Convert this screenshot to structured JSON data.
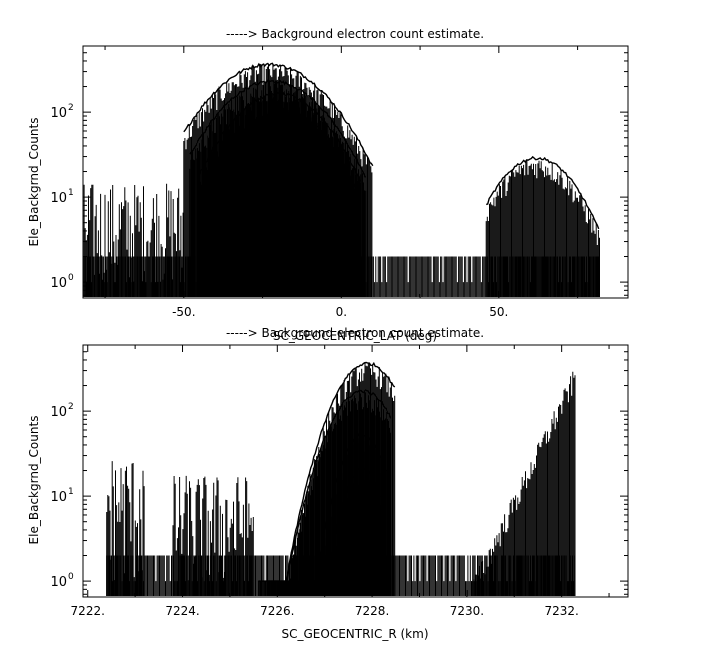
{
  "chart_data": [
    {
      "type": "line",
      "title": "-----> Background electron count estimate.",
      "xlabel": "SC_GEOCENTRIC_LAT (deg)",
      "ylabel": "Ele_Backgrnd_Counts",
      "xlim": [
        -82,
        91
      ],
      "ylim": [
        0.65,
        600
      ],
      "yscale": "log",
      "x_ticks": [
        -50,
        0,
        50
      ],
      "x_tick_labels": [
        "-50.",
        "0.",
        "50."
      ],
      "y_ticks": [
        1,
        10,
        100
      ],
      "y_tick_labels": [
        "10",
        "10",
        "10"
      ],
      "y_tick_exponents": [
        "0",
        "1",
        "2"
      ],
      "line_color": "#000000",
      "noise_floor": {
        "x_range": [
          -82,
          82
        ],
        "values": [
          1,
          2
        ]
      },
      "series": [
        {
          "x_range": [
            -82,
            -50
          ],
          "y_max": 15
        },
        {
          "x_range": [
            -50,
            10
          ],
          "peak_x": -23,
          "peak_y": 380,
          "width": 14
        },
        {
          "x_range": [
            -48,
            8
          ],
          "peak_x": -22,
          "peak_y": 240,
          "width": 13
        },
        {
          "x_range": [
            -45,
            6
          ],
          "peak_x": -20,
          "peak_y": 170,
          "width": 12
        },
        {
          "x_range": [
            -42,
            5
          ],
          "peak_x": -18,
          "peak_y": 110,
          "width": 11
        },
        {
          "x_range": [
            -38,
            0
          ],
          "peak_x": -18,
          "peak_y": 50,
          "width": 9
        },
        {
          "x_range": [
            -35,
            -2
          ],
          "peak_x": -20,
          "peak_y": 22,
          "width": 8
        },
        {
          "x_range": [
            46,
            82
          ],
          "peak_x": 62,
          "peak_y": 30,
          "width": 10
        }
      ]
    },
    {
      "type": "line",
      "title": "-----> Background electron count estimate.",
      "xlabel": "SC_GEOCENTRIC_R (km)",
      "ylabel": "Ele_Backgrnd_Counts",
      "xlim": [
        7221.9,
        7233.4
      ],
      "ylim": [
        0.65,
        600
      ],
      "yscale": "log",
      "x_ticks": [
        7222,
        7224,
        7226,
        7228,
        7230,
        7232
      ],
      "x_tick_labels": [
        "7222.",
        "7224.",
        "7226.",
        "7228.",
        "7230.",
        "7232."
      ],
      "y_ticks": [
        1,
        10,
        100
      ],
      "y_tick_labels": [
        "10",
        "10",
        "10"
      ],
      "y_tick_exponents": [
        "0",
        "1",
        "2"
      ],
      "line_color": "#000000",
      "noise_floor": {
        "x_range": [
          7222.4,
          7232.3
        ],
        "values": [
          1,
          2
        ]
      },
      "series": [
        {
          "x_range": [
            7222.4,
            7223.2
          ],
          "y_max": 30
        },
        {
          "x_range": [
            7223.8,
            7225.5
          ],
          "y_max": 18
        },
        {
          "x_range": [
            7225.6,
            7228.5
          ],
          "peak_x": 7227.9,
          "peak_y": 380,
          "width": 0.5
        },
        {
          "x_range": [
            7225.8,
            7228.4
          ],
          "peak_x": 7227.8,
          "peak_y": 180,
          "width": 0.5
        },
        {
          "x_range": [
            7226.2,
            7228.3
          ],
          "peak_x": 7227.8,
          "peak_y": 55,
          "width": 0.35
        },
        {
          "x_range": [
            7226.5,
            7228.2
          ],
          "peak_x": 7227.8,
          "peak_y": 22,
          "width": 0.3
        },
        {
          "x_range": [
            7230.1,
            7232.3
          ],
          "edge_y": 350,
          "type": "rising"
        }
      ]
    }
  ]
}
